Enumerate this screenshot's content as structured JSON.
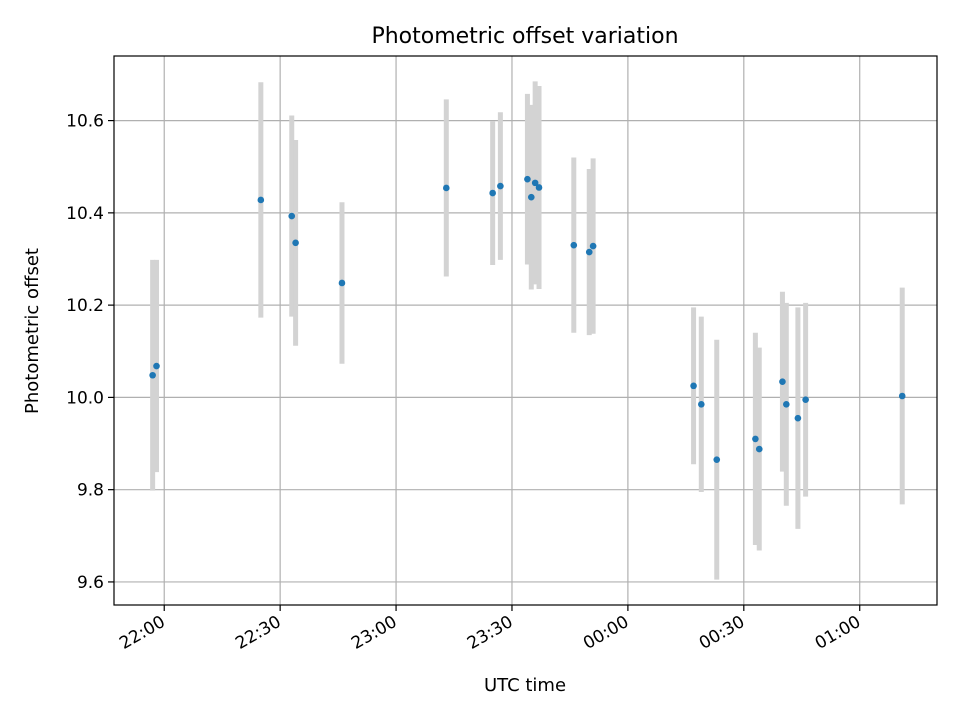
{
  "chart_data": {
    "type": "scatter",
    "title": "Photometric offset variation",
    "xlabel": "UTC time",
    "ylabel": "Photometric offset",
    "x_ticks": [
      "22:00",
      "22:30",
      "23:00",
      "23:30",
      "00:00",
      "00:30",
      "01:00"
    ],
    "y_ticks": [
      "9.6",
      "9.8",
      "10.0",
      "10.2",
      "10.4",
      "10.6"
    ],
    "xlim": [
      "21:47",
      "01:20"
    ],
    "ylim": [
      9.55,
      10.74
    ],
    "grid": true,
    "errorbar_color": "#d3d3d3",
    "point_color": "#1f77b4",
    "points": [
      {
        "t": "21:57",
        "y": 10.048,
        "err": 0.25
      },
      {
        "t": "21:58",
        "y": 10.068,
        "err": 0.23
      },
      {
        "t": "22:25",
        "y": 10.428,
        "err": 0.255
      },
      {
        "t": "22:33",
        "y": 10.393,
        "err": 0.218
      },
      {
        "t": "22:34",
        "y": 10.335,
        "err": 0.223
      },
      {
        "t": "22:46",
        "y": 10.248,
        "err": 0.175
      },
      {
        "t": "23:13",
        "y": 10.454,
        "err": 0.192
      },
      {
        "t": "23:25",
        "y": 10.443,
        "err": 0.156
      },
      {
        "t": "23:27",
        "y": 10.458,
        "err": 0.16
      },
      {
        "t": "23:34",
        "y": 10.473,
        "err": 0.185
      },
      {
        "t": "23:35",
        "y": 10.434,
        "err": 0.2
      },
      {
        "t": "23:36",
        "y": 10.465,
        "err": 0.22
      },
      {
        "t": "23:37",
        "y": 10.455,
        "err": 0.22
      },
      {
        "t": "23:46",
        "y": 10.33,
        "err": 0.19
      },
      {
        "t": "23:50",
        "y": 10.315,
        "err": 0.18
      },
      {
        "t": "23:51",
        "y": 10.328,
        "err": 0.19
      },
      {
        "t": "00:17",
        "y": 10.025,
        "err": 0.17
      },
      {
        "t": "00:19",
        "y": 9.985,
        "err": 0.19
      },
      {
        "t": "00:23",
        "y": 9.865,
        "err": 0.26
      },
      {
        "t": "00:33",
        "y": 9.91,
        "err": 0.23
      },
      {
        "t": "00:34",
        "y": 9.888,
        "err": 0.22
      },
      {
        "t": "00:40",
        "y": 10.034,
        "err": 0.195
      },
      {
        "t": "00:41",
        "y": 9.985,
        "err": 0.22
      },
      {
        "t": "00:44",
        "y": 9.955,
        "err": 0.24
      },
      {
        "t": "00:46",
        "y": 9.995,
        "err": 0.21
      },
      {
        "t": "01:11",
        "y": 10.003,
        "err": 0.235
      }
    ]
  }
}
